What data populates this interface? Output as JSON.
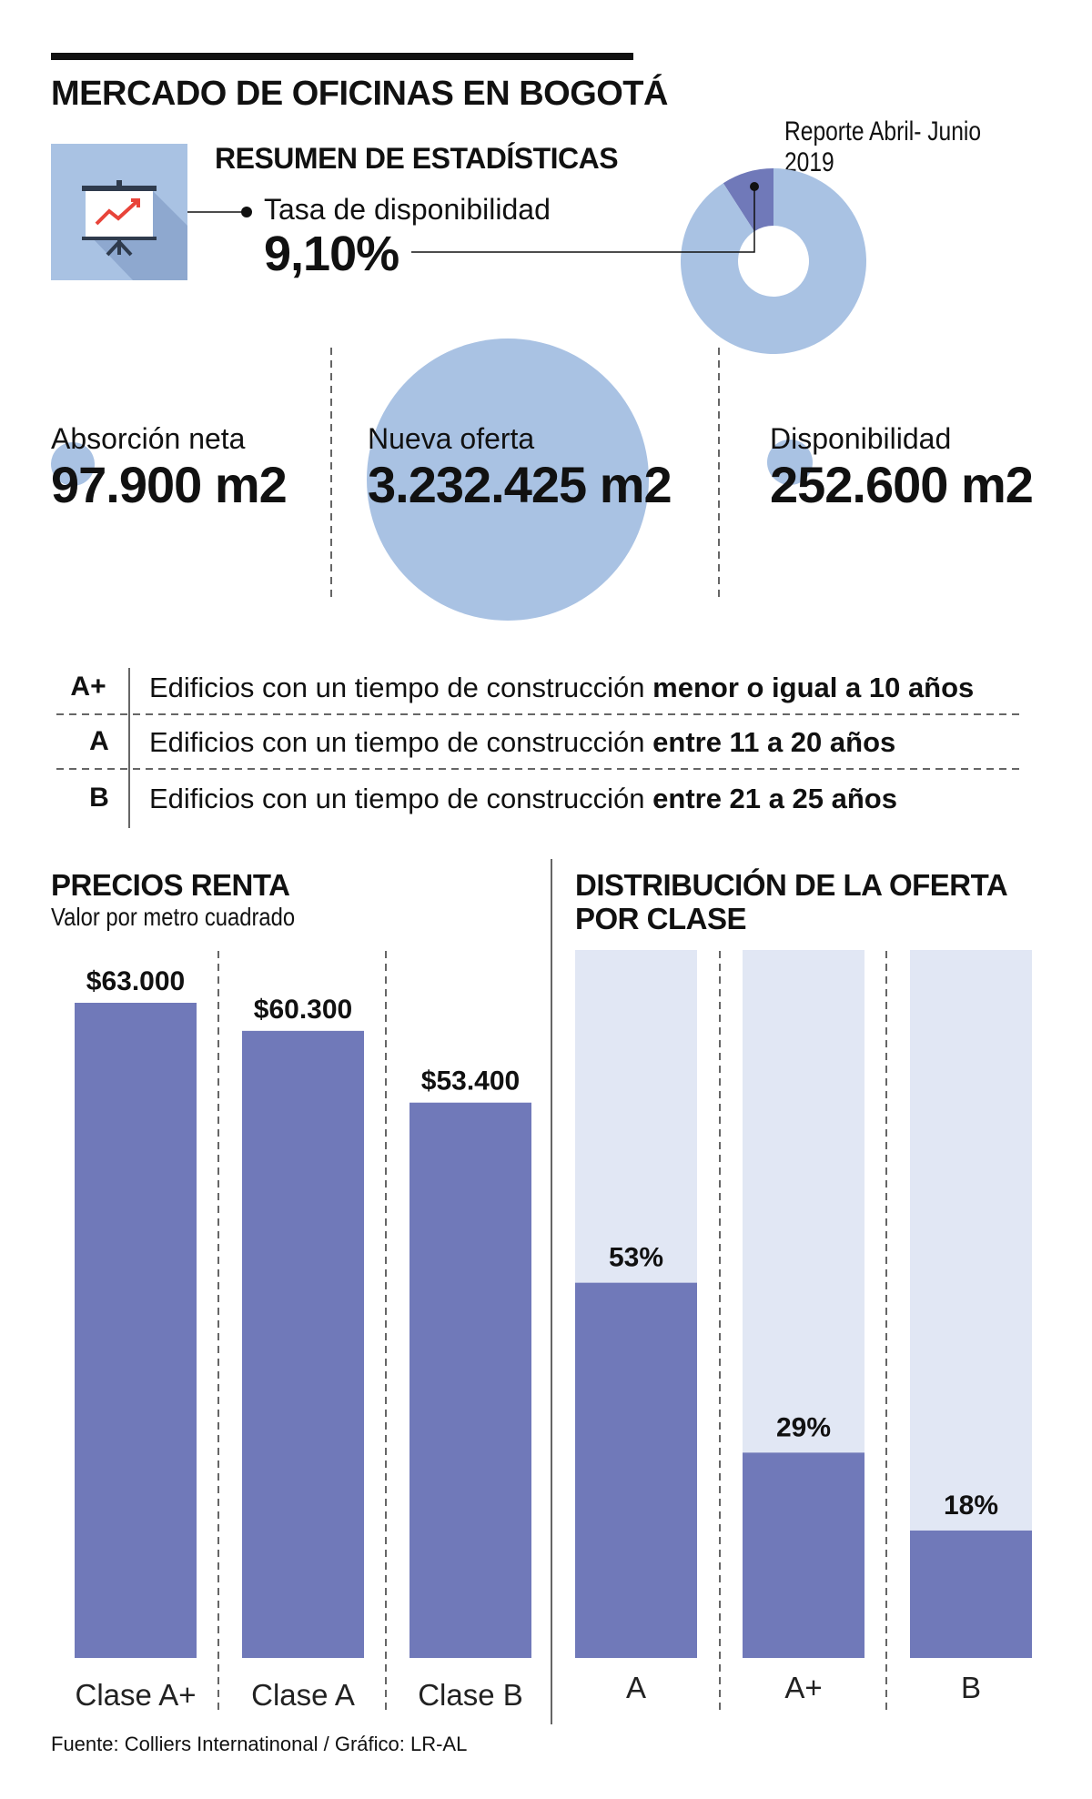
{
  "header": {
    "title": "MERCADO DE OFICINAS EN BOGOTÁ",
    "report": "Reporte Abril- Junio 2019"
  },
  "summary": {
    "heading": "RESUMEN DE ESTADÍSTICAS",
    "rate_label": "Tasa  de disponibilidad",
    "rate_value": "9,10%",
    "icon": "presentation-chart-icon"
  },
  "stats": [
    {
      "label": "Absorción neta",
      "value": "97.900 m2"
    },
    {
      "label": "Nueva oferta",
      "value": "3.232.425 m2"
    },
    {
      "label": "Disponibilidad",
      "value": "252.600 m2"
    }
  ],
  "classes": [
    {
      "code": "A+",
      "desc": "Edificios con un tiempo de construcción ",
      "bold": "menor o igual a 10 años"
    },
    {
      "code": "A",
      "desc": "Edificios con un tiempo de construcción ",
      "bold": "entre 11 a 20 años"
    },
    {
      "code": "B",
      "desc": "Edificios con un tiempo de construcción ",
      "bold": "entre 21 a 25 años"
    }
  ],
  "prices": {
    "title": "PRECIOS RENTA",
    "subtitle": "Valor por metro cuadrado"
  },
  "distribution": {
    "title_line1": "DISTRIBUCIÓN DE LA OFERTA",
    "title_line2": "POR CLASE"
  },
  "source": "Fuente: Colliers Internatinonal / Gráfico: LR-AL",
  "colors": {
    "bar": "#7079b9",
    "light_blue": "#a9c2e3",
    "pale_bar": "#e1e7f4",
    "text": "#111111"
  },
  "chart_data": [
    {
      "type": "pie",
      "title": "Tasa de disponibilidad",
      "values": [
        9.1,
        90.9
      ],
      "colors": [
        "#7079b9",
        "#a9c2e3"
      ],
      "annotations": [
        "9,10%"
      ]
    },
    {
      "type": "bar",
      "title": "PRECIOS RENTA",
      "subtitle": "Valor por metro cuadrado",
      "categories": [
        "Clase A+",
        "Clase A",
        "Clase B"
      ],
      "values": [
        63000,
        60300,
        53400
      ],
      "data_labels": [
        "$63.000",
        "$60.300",
        "$53.400"
      ],
      "ylim": [
        0,
        63000
      ]
    },
    {
      "type": "bar",
      "title": "DISTRIBUCIÓN DE LA OFERTA POR CLASE",
      "categories": [
        "A",
        "A+",
        "B"
      ],
      "values": [
        53,
        29,
        18
      ],
      "data_labels": [
        "53%",
        "29%",
        "18%"
      ],
      "ylim": [
        0,
        100
      ]
    }
  ]
}
